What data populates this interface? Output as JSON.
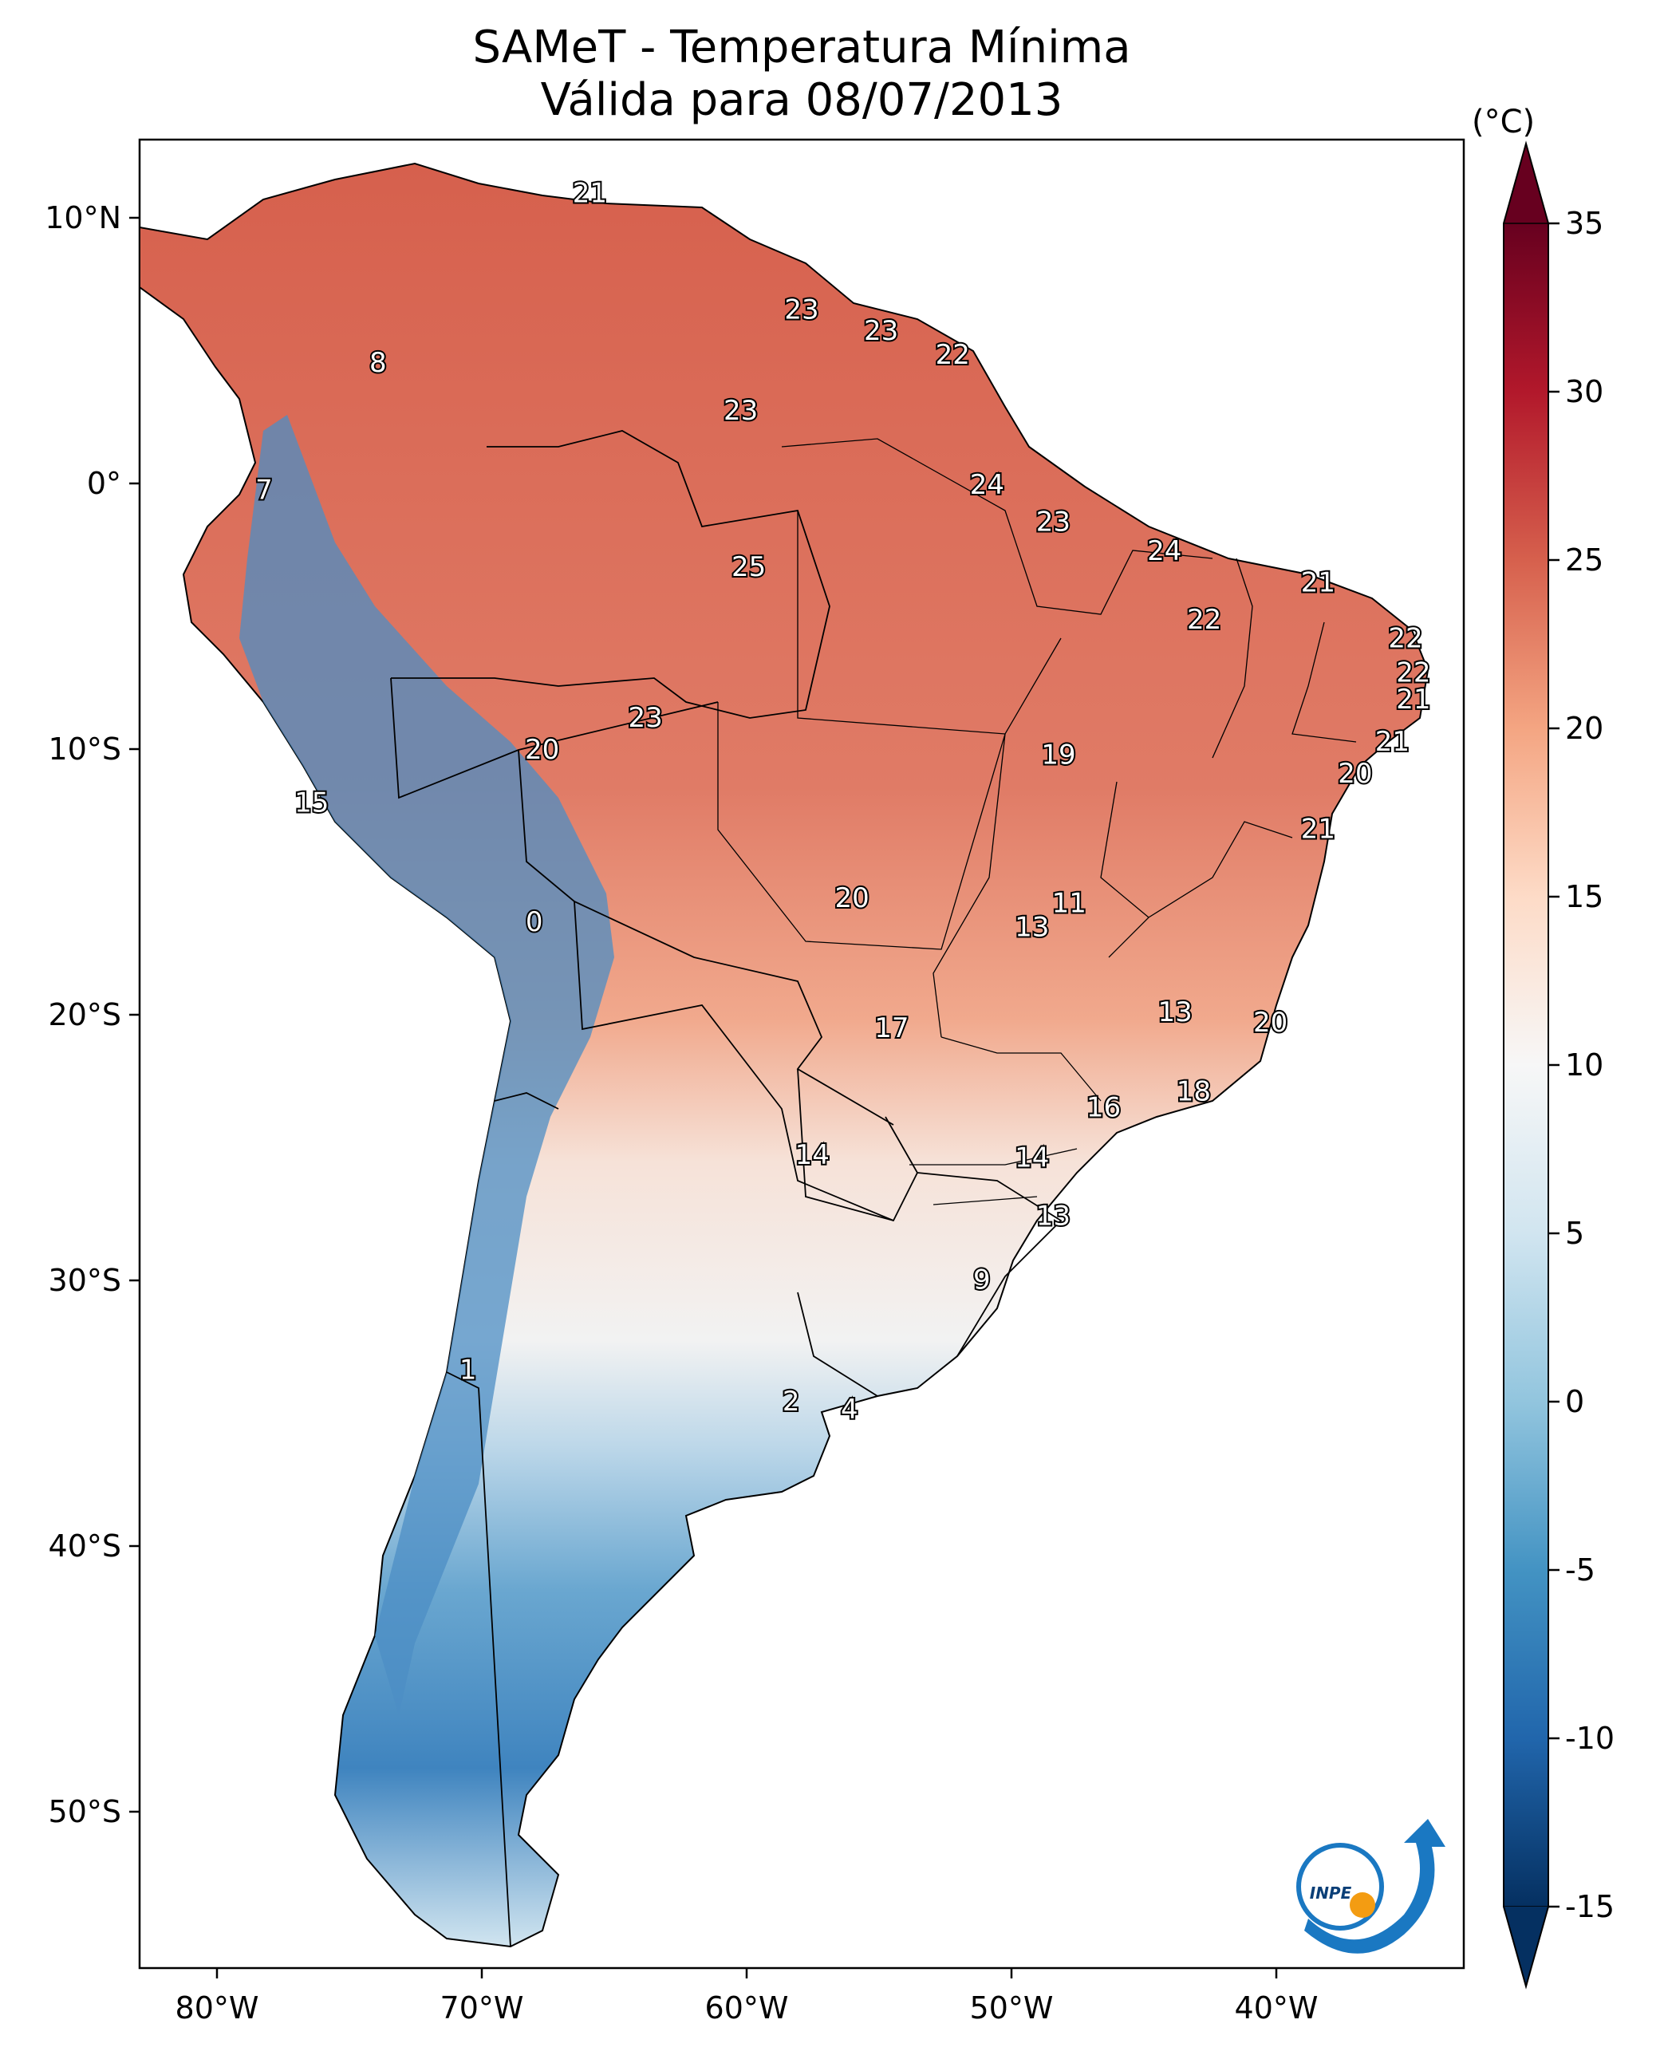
{
  "title": {
    "line1": "SAMeT - Temperatura Mínima",
    "line2": "Válida para 08/07/2013"
  },
  "map": {
    "region": "South America",
    "lon_range": [
      -83,
      -33
    ],
    "lat_range": [
      -56,
      13
    ],
    "lon_ticks": [
      "80°W",
      "70°W",
      "60°W",
      "50°W",
      "40°W"
    ],
    "lat_ticks": [
      "10°N",
      "0°",
      "10°S",
      "20°S",
      "30°S",
      "40°S",
      "50°S"
    ],
    "colormap": "RdBu_r",
    "ocean_color": "#ffffff",
    "border_color": "#000000"
  },
  "colorbar": {
    "unit_label": "(°C)",
    "range": [
      -15,
      35
    ],
    "tick_labels": [
      "35",
      "30",
      "25",
      "20",
      "15",
      "10",
      "5",
      "0",
      "-5",
      "-10",
      "-15"
    ],
    "colors": [
      "#67001f",
      "#b2182b",
      "#d6604d",
      "#f4a582",
      "#fddbc7",
      "#f7f7f7",
      "#d1e5f0",
      "#92c5de",
      "#4393c3",
      "#2166ac",
      "#053061"
    ],
    "extend": "both"
  },
  "station_labels": [
    {
      "value": "21",
      "lon": -66.0,
      "lat": 11.0
    },
    {
      "value": "8",
      "lon": -74.0,
      "lat": 4.6
    },
    {
      "value": "23",
      "lon": -58.0,
      "lat": 6.6
    },
    {
      "value": "23",
      "lon": -55.0,
      "lat": 5.8
    },
    {
      "value": "22",
      "lon": -52.3,
      "lat": 4.9
    },
    {
      "value": "23",
      "lon": -60.3,
      "lat": 2.8
    },
    {
      "value": "7",
      "lon": -78.3,
      "lat": -0.2
    },
    {
      "value": "24",
      "lon": -51.0,
      "lat": 0.0
    },
    {
      "value": "23",
      "lon": -48.5,
      "lat": -1.4
    },
    {
      "value": "25",
      "lon": -60.0,
      "lat": -3.1
    },
    {
      "value": "24",
      "lon": -44.3,
      "lat": -2.5
    },
    {
      "value": "21",
      "lon": -38.5,
      "lat": -3.7
    },
    {
      "value": "22",
      "lon": -42.8,
      "lat": -5.1
    },
    {
      "value": "22",
      "lon": -35.2,
      "lat": -5.8
    },
    {
      "value": "22",
      "lon": -34.9,
      "lat": -7.1
    },
    {
      "value": "21",
      "lon": -34.9,
      "lat": -8.1
    },
    {
      "value": "23",
      "lon": -63.9,
      "lat": -8.8
    },
    {
      "value": "20",
      "lon": -67.8,
      "lat": -10.0
    },
    {
      "value": "19",
      "lon": -48.3,
      "lat": -10.2
    },
    {
      "value": "21",
      "lon": -35.7,
      "lat": -9.7
    },
    {
      "value": "20",
      "lon": -37.1,
      "lat": -10.9
    },
    {
      "value": "15",
      "lon": -76.5,
      "lat": -12.0
    },
    {
      "value": "21",
      "lon": -38.5,
      "lat": -13.0
    },
    {
      "value": "11",
      "lon": -47.9,
      "lat": -15.8
    },
    {
      "value": "20",
      "lon": -56.1,
      "lat": -15.6
    },
    {
      "value": "13",
      "lon": -49.3,
      "lat": -16.7
    },
    {
      "value": "0",
      "lon": -68.1,
      "lat": -16.5
    },
    {
      "value": "13",
      "lon": -43.9,
      "lat": -19.9
    },
    {
      "value": "20",
      "lon": -40.3,
      "lat": -20.3
    },
    {
      "value": "17",
      "lon": -54.6,
      "lat": -20.5
    },
    {
      "value": "18",
      "lon": -43.2,
      "lat": -22.9
    },
    {
      "value": "16",
      "lon": -46.6,
      "lat": -23.5
    },
    {
      "value": "14",
      "lon": -57.6,
      "lat": -25.3
    },
    {
      "value": "14",
      "lon": -49.3,
      "lat": -25.4
    },
    {
      "value": "13",
      "lon": -48.5,
      "lat": -27.6
    },
    {
      "value": "9",
      "lon": -51.2,
      "lat": -30.0
    },
    {
      "value": "1",
      "lon": -70.6,
      "lat": -33.4
    },
    {
      "value": "2",
      "lon": -58.4,
      "lat": -34.6
    },
    {
      "value": "4",
      "lon": -56.2,
      "lat": -34.9
    }
  ],
  "logo": {
    "text": "INPE"
  }
}
